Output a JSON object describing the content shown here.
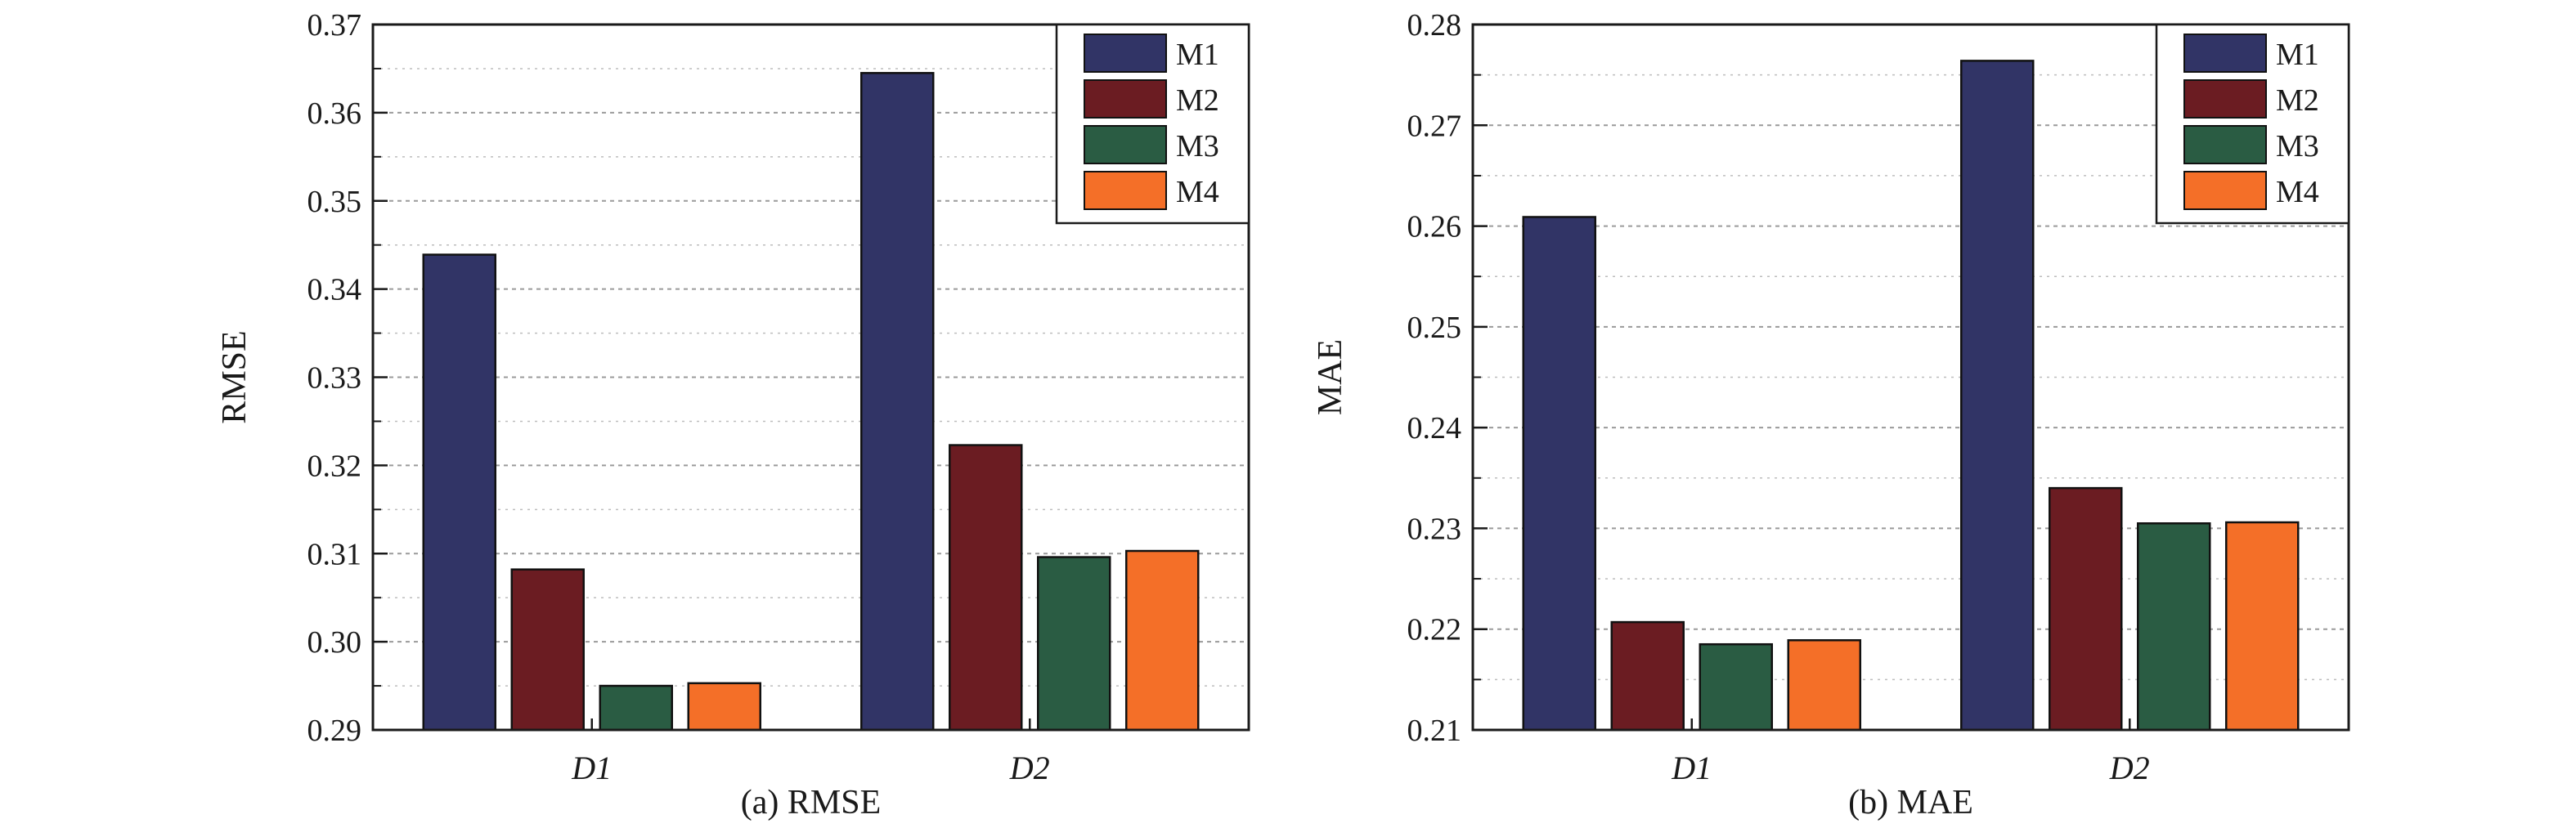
{
  "colors": {
    "M1": "#313466",
    "M2": "#6b1c22",
    "M3": "#2a5c43",
    "M4": "#f46f28"
  },
  "chart_data": [
    {
      "type": "bar",
      "caption": "(a) RMSE",
      "ylabel": "RMSE",
      "xlabel": "",
      "categories": [
        "D1",
        "D2"
      ],
      "ylim": [
        0.29,
        0.37
      ],
      "yticks": [
        "0.29",
        "0.30",
        "0.31",
        "0.32",
        "0.33",
        "0.34",
        "0.35",
        "0.36",
        "0.37"
      ],
      "grid": true,
      "legend": "top-right",
      "series": [
        {
          "name": "M1",
          "values": [
            0.3439,
            0.3645
          ]
        },
        {
          "name": "M2",
          "values": [
            0.3082,
            0.3223
          ]
        },
        {
          "name": "M3",
          "values": [
            0.295,
            0.3096
          ]
        },
        {
          "name": "M4",
          "values": [
            0.2953,
            0.3103
          ]
        }
      ]
    },
    {
      "type": "bar",
      "caption": "(b) MAE",
      "ylabel": "MAE",
      "xlabel": "",
      "categories": [
        "D1",
        "D2"
      ],
      "ylim": [
        0.21,
        0.28
      ],
      "yticks": [
        "0.21",
        "0.22",
        "0.23",
        "0.24",
        "0.25",
        "0.26",
        "0.27",
        "0.28"
      ],
      "grid": true,
      "legend": "top-right",
      "series": [
        {
          "name": "M1",
          "values": [
            0.2609,
            0.2764
          ]
        },
        {
          "name": "M2",
          "values": [
            0.2207,
            0.234
          ]
        },
        {
          "name": "M3",
          "values": [
            0.2185,
            0.2305
          ]
        },
        {
          "name": "M4",
          "values": [
            0.2189,
            0.2306
          ]
        }
      ]
    }
  ]
}
